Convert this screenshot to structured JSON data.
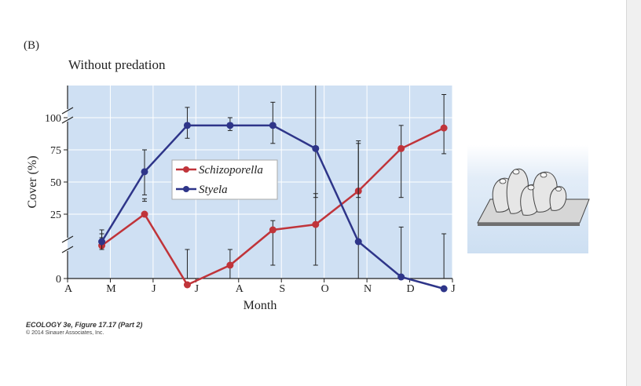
{
  "panel_label": "(B)",
  "credit": {
    "line1": "ECOLOGY 3e, Figure 17.17 (Part 2)",
    "line2": "© 2014 Sinauer Associates, Inc."
  },
  "colors": {
    "plot_bg": "#cfe0f3",
    "grid": "#ffffff",
    "schizoporella": "#c0343a",
    "styela": "#2e3589",
    "inset_bg": "#dde9f6"
  },
  "inset_icon": "ascidian-colony-illustration",
  "chart_data": {
    "type": "line",
    "title": "Without predation",
    "xlabel": "Month",
    "ylabel": "Cover (%)",
    "categories": [
      "A",
      "M",
      "J",
      "J",
      "A",
      "S",
      "O",
      "N",
      "D",
      "J"
    ],
    "ylim": [
      0,
      100
    ],
    "y_ticks": [
      {
        "value": 0,
        "label": "0"
      },
      {
        "value": 25,
        "label": "25"
      },
      {
        "value": 50,
        "label": "50"
      },
      {
        "value": 75,
        "label": "75"
      },
      {
        "value": 100,
        "label": "100"
      }
    ],
    "axis_breaks": true,
    "grid": true,
    "legend_position": "center",
    "series": [
      {
        "name": "Schizoporella",
        "x": [
          0.8,
          1.8,
          2.8,
          3.8,
          4.8,
          5.8,
          6.8,
          7.8,
          8.8
        ],
        "y": [
          6,
          25,
          -4,
          1,
          10,
          17,
          43,
          76,
          92
        ],
        "err_lo": [
          8,
          35,
          -10,
          -4,
          1,
          1,
          38,
          38,
          72
        ],
        "err_hi": [
          10,
          37,
          5,
          5,
          20,
          41,
          82,
          94,
          118
        ]
      },
      {
        "name": "Styela",
        "x": [
          0.8,
          1.8,
          2.8,
          3.8,
          4.8,
          5.8,
          6.8,
          7.8,
          8.8
        ],
        "y": [
          7,
          58,
          94,
          94,
          94,
          76,
          7,
          -2,
          -5
        ],
        "err_lo": [
          5,
          40,
          84,
          90,
          80,
          38,
          -26,
          -26,
          -26
        ],
        "err_hi": [
          9,
          75,
          108,
          100,
          112,
          125,
          80,
          15,
          9
        ]
      }
    ]
  }
}
